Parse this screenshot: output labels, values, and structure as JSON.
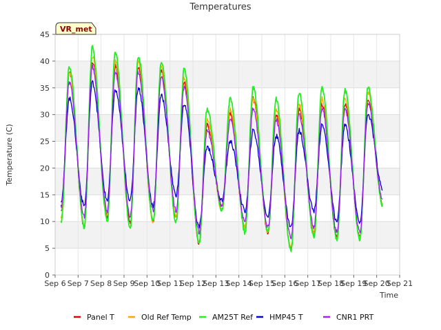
{
  "chart_data": {
    "type": "line",
    "title": "Temperatures",
    "xlabel": "Time",
    "ylabel": "Temperature (C)",
    "badge": "VR_met",
    "xlim": [
      0,
      15
    ],
    "ylim": [
      0,
      45
    ],
    "x_ticks": [
      0,
      1,
      2,
      3,
      4,
      5,
      6,
      7,
      8,
      9,
      10,
      11,
      12,
      13,
      14,
      15
    ],
    "x_tick_labels": [
      "Sep 6",
      "Sep 7",
      "Sep 8",
      "Sep 9",
      "Sep 10",
      "Sep 11",
      "Sep 12",
      "Sep 13",
      "Sep 14",
      "Sep 15",
      "Sep 16",
      "Sep 17",
      "Sep 18",
      "Sep 19",
      "Sep 20",
      "Sep 21"
    ],
    "y_ticks": [
      0,
      5,
      10,
      15,
      20,
      25,
      30,
      35,
      40,
      45
    ],
    "y_tick_labels": [
      "0",
      "5",
      "10",
      "15",
      "20",
      "25",
      "30",
      "35",
      "40",
      "45"
    ],
    "grid": true,
    "legend_position": "bottom",
    "x_start": 0.25,
    "x_end": 14.25,
    "series": [
      {
        "name": "Panel T",
        "color": "#d40000",
        "mins": [
          12,
          9,
          11,
          10,
          10,
          11,
          6,
          13,
          9,
          8,
          5,
          8,
          7,
          7,
          13
        ],
        "maxs": [
          38,
          40,
          39,
          39,
          38,
          36,
          28,
          30,
          33,
          30,
          31,
          32,
          32,
          33
        ]
      },
      {
        "name": "Old Ref Temp",
        "color": "#ffa500",
        "mins": [
          11,
          9,
          11,
          9,
          10,
          11,
          6,
          12,
          9,
          8,
          5,
          8,
          7,
          7,
          13
        ],
        "maxs": [
          38,
          41,
          40,
          40,
          39,
          37,
          29,
          31,
          33,
          31,
          32,
          33,
          33,
          34
        ]
      },
      {
        "name": "AM25T Ref",
        "color": "#22ee22",
        "mins": [
          10,
          9,
          10,
          9,
          10,
          10,
          6,
          12,
          8,
          8,
          4.5,
          7,
          6.5,
          6.5,
          13
        ],
        "maxs": [
          39,
          42.5,
          41.5,
          41,
          40,
          38.5,
          31,
          33,
          35,
          33,
          34,
          35,
          34.5,
          35
        ]
      },
      {
        "name": "HMP45 T",
        "color": "#0000cc",
        "mins": [
          14,
          13,
          14,
          14,
          13,
          15,
          9,
          14,
          12,
          11,
          9,
          12,
          10,
          10,
          16
        ],
        "maxs": [
          33,
          36,
          34.5,
          35,
          33.5,
          32,
          24,
          25,
          27,
          26,
          27,
          28,
          28,
          30
        ]
      },
      {
        "name": "CNR1 PRT",
        "color": "#a020f0",
        "mins": [
          13,
          11,
          12,
          11,
          12,
          12,
          8,
          13,
          10,
          9,
          7,
          9,
          8,
          8,
          14
        ],
        "maxs": [
          36,
          39,
          38,
          38,
          37,
          35,
          27,
          29,
          31,
          29,
          30,
          31,
          31,
          32
        ]
      }
    ]
  }
}
